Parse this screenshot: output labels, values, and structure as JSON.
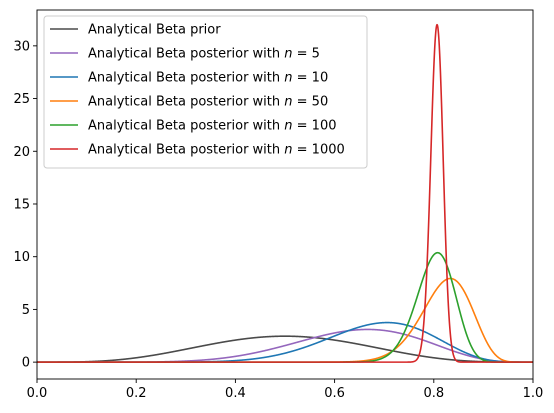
{
  "chart_data": {
    "type": "line",
    "title": "",
    "xlabel": "",
    "ylabel": "",
    "xlim": [
      0,
      1
    ],
    "ylim": [
      -1.6,
      33.4
    ],
    "xticks": [
      0.0,
      0.2,
      0.4,
      0.6,
      0.8,
      1.0
    ],
    "xtick_labels": [
      "0.0",
      "0.2",
      "0.4",
      "0.6",
      "0.8",
      "1.0"
    ],
    "yticks": [
      0,
      5,
      10,
      15,
      20,
      25,
      30
    ],
    "ytick_labels": [
      "0",
      "5",
      "10",
      "15",
      "20",
      "25",
      "30"
    ],
    "grid": false,
    "legend_position": "top-left",
    "series": [
      {
        "name": "Analytical Beta prior",
        "legend_prefix": "Analytical Beta prior",
        "n_label": "",
        "color": "#4a4a4a",
        "alpha": 5,
        "beta": 5
      },
      {
        "name": "Analytical Beta posterior with n = 5",
        "legend_prefix": "Analytical Beta posterior with ",
        "n_label": "5",
        "color": "#9467bd",
        "alpha": 9,
        "beta": 5
      },
      {
        "name": "Analytical Beta posterior with n = 10",
        "legend_prefix": "Analytical Beta posterior with ",
        "n_label": "10",
        "color": "#1f77b4",
        "alpha": 13,
        "beta": 6
      },
      {
        "name": "Analytical Beta posterior with n = 50",
        "legend_prefix": "Analytical Beta posterior with ",
        "n_label": "50",
        "color": "#ff7f0e",
        "alpha": 46,
        "beta": 10
      },
      {
        "name": "Analytical Beta posterior with n = 100",
        "legend_prefix": "Analytical Beta posterior with ",
        "n_label": "100",
        "color": "#2ca02c",
        "alpha": 85,
        "beta": 21
      },
      {
        "name": "Analytical Beta posterior with n = 1000",
        "legend_prefix": "Analytical Beta posterior with ",
        "n_label": "1000",
        "color": "#d62728",
        "alpha": 810,
        "beta": 195
      }
    ]
  }
}
